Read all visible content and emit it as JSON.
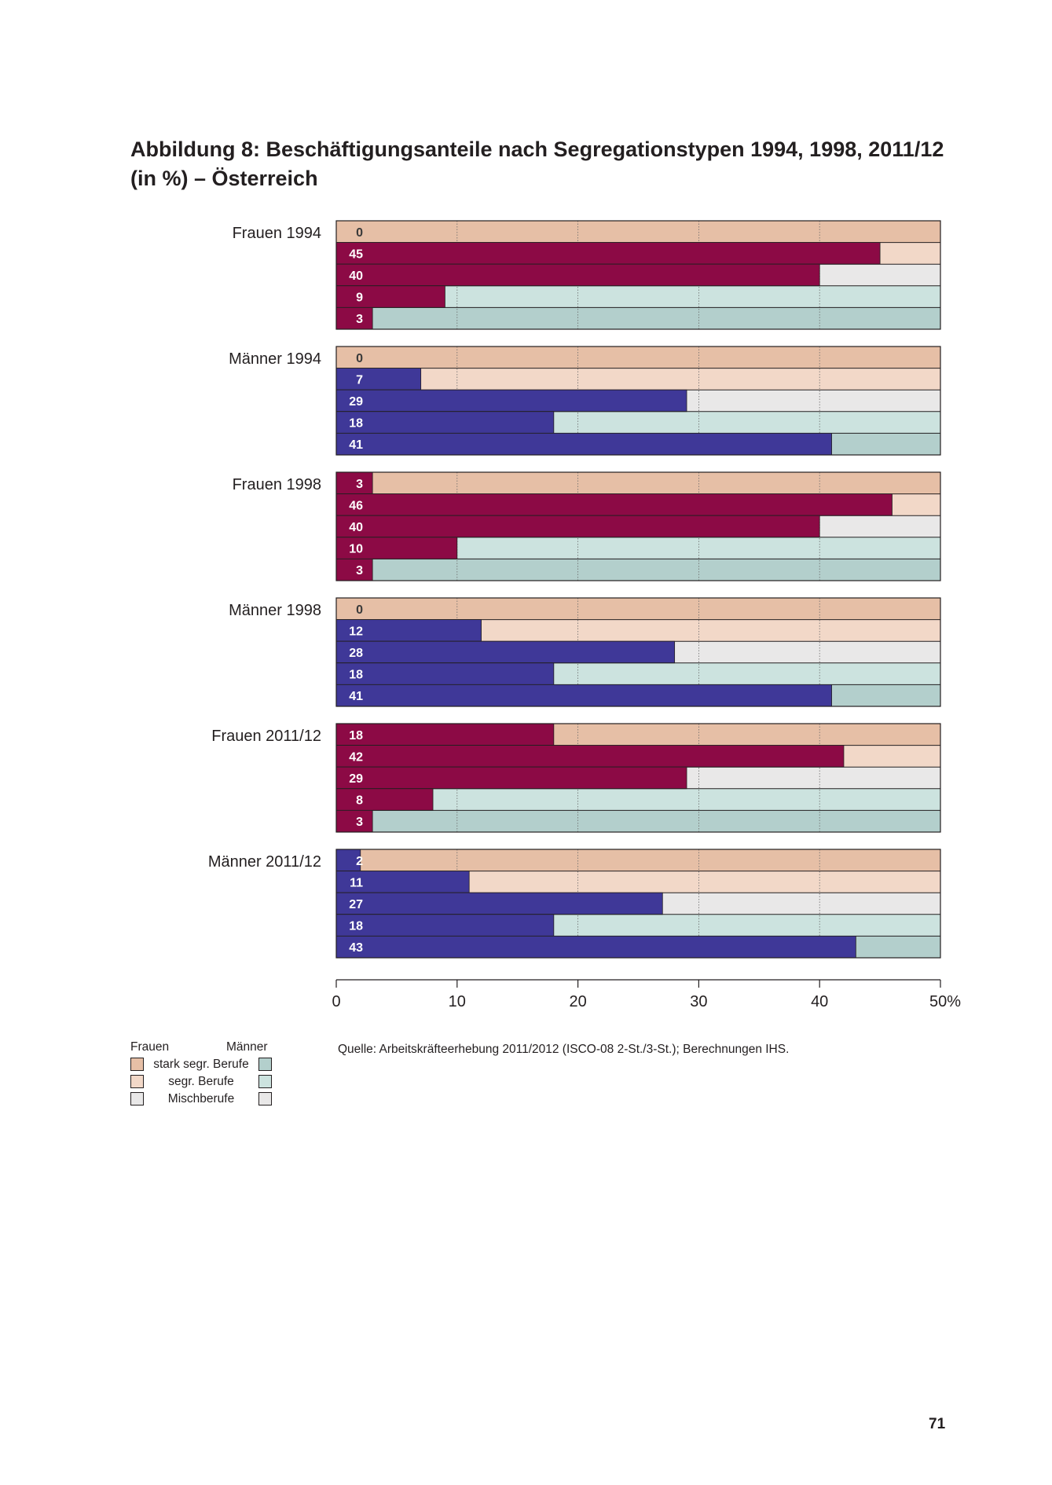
{
  "title": "Abbildung 8: Beschäftigungsanteile nach Segregationstypen 1994, 1998, 2011/12 (in %) – Österreich",
  "colors": {
    "frauen_bar": "#8c0a45",
    "maenner_bar": "#3f3898",
    "bg_stark_frauen": "#e6bfa6",
    "bg_segr_frauen": "#f2d8c8",
    "bg_misch": "#e9e8e8",
    "bg_segr_maenner": "#cce3df",
    "bg_stark_maenner": "#b3cfcc"
  },
  "chart_data": {
    "type": "bar",
    "orientation": "horizontal",
    "xlim": [
      0,
      50
    ],
    "x_ticks": [
      "0",
      "10",
      "20",
      "30",
      "40",
      "50%"
    ],
    "row_backgrounds": [
      "stark segr. Berufe (Frauen)",
      "segr. Berufe (Frauen)",
      "Mischberufe",
      "segr. Berufe (Männer)",
      "stark segr. Berufe (Männer)"
    ],
    "panels": [
      {
        "label": "Frauen 1994",
        "gender": "frauen",
        "values": [
          0,
          45,
          40,
          9,
          3
        ]
      },
      {
        "label": "Männer 1994",
        "gender": "maenner",
        "values": [
          0,
          7,
          29,
          18,
          41
        ]
      },
      {
        "label": "Frauen 1998",
        "gender": "frauen",
        "values": [
          3,
          46,
          40,
          10,
          3
        ]
      },
      {
        "label": "Männer 1998",
        "gender": "maenner",
        "values": [
          0,
          12,
          28,
          18,
          41
        ]
      },
      {
        "label": "Frauen 2011/12",
        "gender": "frauen",
        "values": [
          18,
          42,
          29,
          8,
          3
        ]
      },
      {
        "label": "Männer 2011/12",
        "gender": "maenner",
        "values": [
          2,
          11,
          27,
          18,
          43
        ]
      }
    ]
  },
  "legend": {
    "header_frauen": "Frauen",
    "header_maenner": "Männer",
    "items": [
      "stark segr. Berufe",
      "segr. Berufe",
      "Mischberufe"
    ]
  },
  "source": "Quelle: Arbeitskräfteerhebung 2011/2012 (ISCO-08 2-St./3-St.); Berechnungen IHS.",
  "page_number": "71"
}
